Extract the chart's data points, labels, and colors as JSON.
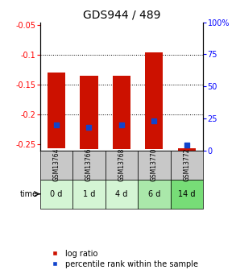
{
  "title": "GDS944 / 489",
  "categories": [
    "GSM13764",
    "GSM13766",
    "GSM13768",
    "GSM13770",
    "GSM13772"
  ],
  "time_labels": [
    "0 d",
    "1 d",
    "4 d",
    "6 d",
    "14 d"
  ],
  "log_ratio_top": [
    -0.13,
    -0.135,
    -0.135,
    -0.095,
    -0.256
  ],
  "log_ratio_bottom": [
    -0.256,
    -0.258,
    -0.258,
    -0.258,
    -0.26
  ],
  "percentile_right": [
    20,
    18,
    20,
    23,
    4
  ],
  "ylim_left": [
    -0.26,
    -0.045
  ],
  "ylim_right": [
    0,
    100
  ],
  "yticks_left": [
    -0.25,
    -0.2,
    -0.15,
    -0.1,
    -0.05
  ],
  "ytick_labels_left": [
    "-0.25",
    "-0.2",
    "-0.15",
    "-0.1",
    "-0.05"
  ],
  "yticks_right": [
    0,
    25,
    50,
    75,
    100
  ],
  "ytick_labels_right": [
    "0",
    "25",
    "50",
    "75",
    "100%"
  ],
  "grid_lines": [
    -0.1,
    -0.15,
    -0.2
  ],
  "bar_color": "#cc1100",
  "blue_color": "#1144cc",
  "bar_width": 0.55,
  "time_bg_colors": [
    "#d4f5d4",
    "#d4f5d4",
    "#d4f5d4",
    "#aae8aa",
    "#77dd77"
  ],
  "gsm_bg_color": "#c8c8c8",
  "title_fontsize": 10,
  "tick_fontsize": 7,
  "legend_fontsize": 7,
  "gsm_fontsize": 5.5,
  "time_fontsize": 7
}
